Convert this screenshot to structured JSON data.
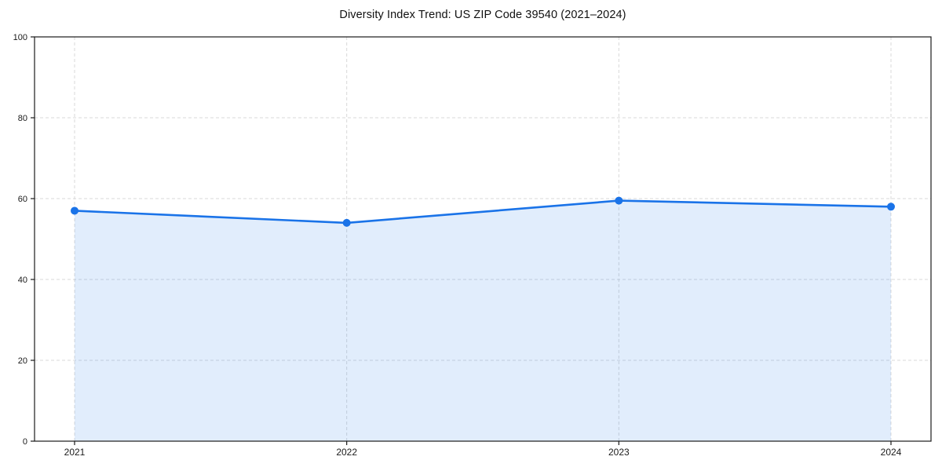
{
  "chart_data": {
    "type": "area",
    "title": "Diversity Index Trend: US ZIP Code 39540 (2021–2024)",
    "categories": [
      "2021",
      "2022",
      "2023",
      "2024"
    ],
    "series": [
      {
        "name": "Diversity Index",
        "values": [
          57,
          54,
          59.5,
          58
        ]
      }
    ],
    "xlabel": "",
    "ylabel": "",
    "ylim": [
      0,
      100
    ],
    "yticks": [
      0,
      20,
      40,
      60,
      80,
      100
    ],
    "grid": true,
    "grid_style": "dashed",
    "legend_position": "none",
    "marker": "circle",
    "colors": {
      "line": "#1a73e8",
      "marker": "#1a73e8",
      "fill": "rgba(26, 115, 232, 0.13)",
      "axis": "#1a1a1a",
      "grid": "#d9d9d9",
      "tick_label": "#1a1a1a",
      "background": "#ffffff"
    }
  }
}
